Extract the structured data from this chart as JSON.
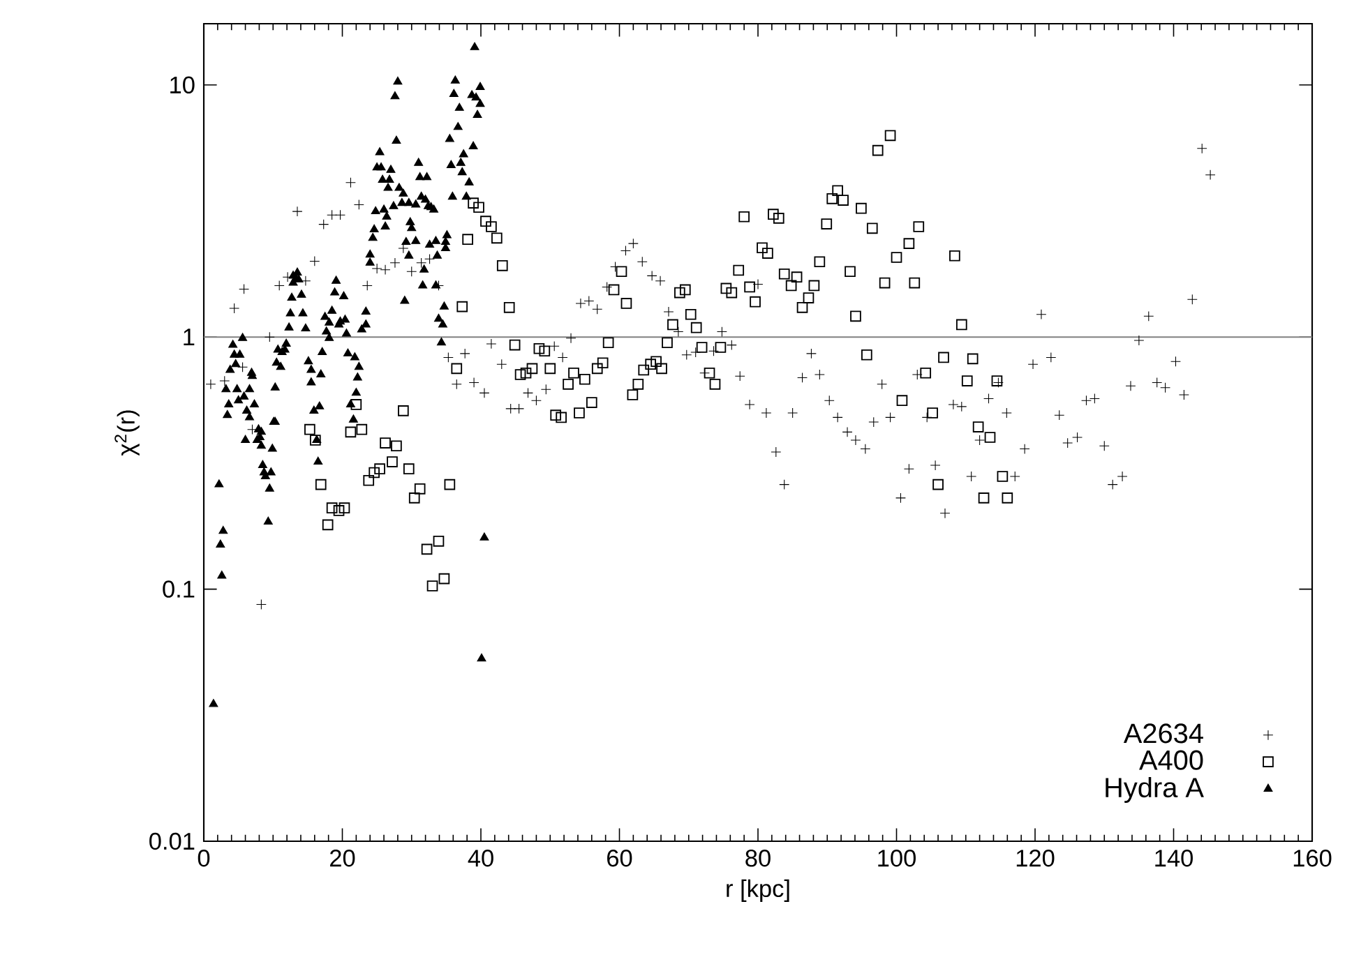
{
  "chart_data": {
    "type": "scatter",
    "xlabel": "r [kpc]",
    "ylabel": "χ$^{2}$(r)",
    "log": "y",
    "legend": "bottom right",
    "xlim": [
      0,
      160
    ],
    "xticks": [
      0,
      20,
      40,
      60,
      80,
      100,
      120,
      140,
      160
    ],
    "ylim": [
      0.01,
      17.5
    ],
    "yticks": [
      0.01,
      0.1,
      1,
      10
    ],
    "ref_lines": [
      {
        "axis": "y",
        "value": 1,
        "color": "#808080"
      }
    ],
    "series": [
      {
        "name": "A2634",
        "color": "#000000",
        "marker": "cross",
        "x": [
          1,
          3,
          5.6,
          4.4,
          5.8,
          13.5,
          17.3,
          18.5,
          19.7,
          21.2,
          22.4,
          16,
          10.9,
          12.1,
          14.7,
          9.5,
          7,
          8.3,
          23.6,
          27.6,
          25,
          26.2,
          28.8,
          30,
          31.4,
          32.6,
          33.9,
          41.5,
          43,
          37.7,
          35.3,
          36.5,
          39,
          40.5,
          44.3,
          62,
          60.9,
          59.4,
          63.3,
          64.7,
          65.9,
          58.2,
          54.4,
          55.6,
          56.8,
          53,
          50.6,
          51.8,
          49.4,
          46.8,
          48,
          45.5,
          67.1,
          68.5,
          74.8,
          76.2,
          73.6,
          71,
          69.7,
          72.3,
          77.4,
          78.8,
          81.2,
          82.6,
          83.8,
          85,
          80,
          86.4,
          87.7,
          88.9,
          90.3,
          91.5,
          92.9,
          94.1,
          95.5,
          96.7,
          97.9,
          99.1,
          100.6,
          101.8,
          103,
          104.4,
          105.6,
          107,
          108.2,
          109.4,
          110.8,
          112,
          113.3,
          114.7,
          115.9,
          117.1,
          118.5,
          119.7,
          120.9,
          122.3,
          123.5,
          124.7,
          126.1,
          127.4,
          128.6,
          130,
          131.2,
          132.6,
          133.8,
          135,
          136.4,
          137.6,
          138.8,
          140.3,
          141.5,
          142.7,
          144.1,
          145.3
        ],
        "values": [
          0.65,
          0.67,
          0.76,
          1.3,
          1.55,
          3.15,
          2.8,
          3.05,
          3.05,
          4.1,
          3.35,
          2.0,
          1.6,
          1.73,
          1.67,
          1.0,
          0.43,
          0.087,
          1.6,
          1.97,
          1.87,
          1.85,
          2.25,
          1.82,
          1.97,
          2.04,
          1.6,
          0.94,
          0.78,
          0.86,
          0.83,
          0.65,
          0.66,
          0.6,
          0.52,
          2.35,
          2.2,
          1.9,
          1.99,
          1.75,
          1.67,
          1.58,
          1.36,
          1.39,
          1.29,
          0.99,
          0.92,
          0.83,
          0.62,
          0.6,
          0.56,
          0.52,
          1.26,
          1.05,
          1.05,
          0.93,
          0.88,
          0.87,
          0.85,
          0.72,
          0.7,
          0.54,
          0.5,
          0.35,
          0.26,
          0.5,
          1.62,
          0.69,
          0.86,
          0.71,
          0.56,
          0.48,
          0.42,
          0.39,
          0.36,
          0.46,
          0.65,
          0.48,
          0.23,
          0.3,
          0.71,
          0.48,
          0.31,
          0.2,
          0.54,
          0.53,
          0.28,
          0.39,
          0.57,
          0.66,
          0.5,
          0.28,
          0.36,
          0.78,
          1.23,
          0.83,
          0.49,
          0.38,
          0.4,
          0.56,
          0.57,
          0.37,
          0.26,
          0.28,
          0.64,
          0.97,
          1.21,
          0.66,
          0.63,
          0.8,
          0.59,
          1.41,
          5.6,
          4.4
        ]
      },
      {
        "name": "A400",
        "color": "#000000",
        "marker": "square",
        "x": [
          38.9,
          39.7,
          40.7,
          41.5,
          42.3,
          38.1,
          43.1,
          37.3,
          44.1,
          44.9,
          36.5,
          28.8,
          22,
          15.3,
          16.1,
          21.2,
          22.8,
          26.2,
          27.8,
          27.2,
          25.4,
          24.6,
          23.8,
          29.6,
          16.9,
          31.2,
          30.4,
          35.5,
          18.5,
          19.5,
          20.3,
          17.9,
          32.2,
          33.9,
          33,
          34.7,
          48.4,
          49.2,
          47.4,
          46.5,
          45.7,
          50,
          52.6,
          53.4,
          55,
          56.8,
          57.6,
          58.4,
          56,
          54.2,
          50.8,
          51.6,
          61.9,
          62.7,
          63.5,
          64.5,
          65.3,
          66.1,
          59.2,
          60.3,
          61,
          66.9,
          67.7,
          68.7,
          69.5,
          70.3,
          71.1,
          71.9,
          73,
          73.8,
          74.6,
          75.4,
          76.2,
          77.2,
          78,
          78.8,
          79.6,
          80.6,
          81.4,
          82.2,
          83,
          83.8,
          84.8,
          85.6,
          86.4,
          87.3,
          88.1,
          88.9,
          89.9,
          90.7,
          91.5,
          92.3,
          93.3,
          94.1,
          94.9,
          95.7,
          96.5,
          98.3,
          100,
          100.8,
          101.8,
          102.6,
          103.2,
          97.3,
          99.1,
          108.4,
          109.4,
          106.8,
          111,
          104.2,
          110.2,
          114.5,
          105.2,
          111.8,
          113.5,
          106,
          115.3,
          112.6,
          116
        ],
        "values": [
          3.4,
          3.27,
          2.88,
          2.74,
          2.47,
          2.44,
          1.92,
          1.32,
          1.31,
          0.93,
          0.75,
          0.51,
          0.54,
          0.43,
          0.39,
          0.42,
          0.43,
          0.38,
          0.37,
          0.32,
          0.3,
          0.29,
          0.27,
          0.3,
          0.26,
          0.25,
          0.23,
          0.26,
          0.21,
          0.205,
          0.21,
          0.18,
          0.144,
          0.155,
          0.103,
          0.11,
          0.9,
          0.88,
          0.75,
          0.72,
          0.71,
          0.75,
          0.65,
          0.72,
          0.68,
          0.75,
          0.79,
          0.95,
          0.55,
          0.5,
          0.49,
          0.48,
          0.59,
          0.65,
          0.74,
          0.78,
          0.8,
          0.75,
          1.54,
          1.82,
          1.36,
          0.95,
          1.12,
          1.5,
          1.54,
          1.23,
          1.09,
          0.91,
          0.72,
          0.65,
          0.91,
          1.56,
          1.5,
          1.84,
          3.0,
          1.58,
          1.38,
          2.26,
          2.15,
          3.07,
          2.96,
          1.78,
          1.6,
          1.73,
          1.31,
          1.43,
          1.6,
          1.99,
          2.81,
          3.54,
          3.81,
          3.49,
          1.82,
          1.21,
          3.24,
          0.85,
          2.7,
          1.64,
          2.07,
          0.56,
          2.35,
          1.64,
          2.74,
          5.5,
          6.3,
          2.1,
          1.12,
          0.83,
          0.82,
          0.72,
          0.67,
          0.67,
          0.5,
          0.44,
          0.4,
          0.26,
          0.28,
          0.23,
          0.23
        ]
      },
      {
        "name": "Hydra A",
        "color": "#000000",
        "marker": "triangle",
        "x": [
          39.1,
          36.3,
          28,
          27.6,
          39.9,
          36.1,
          38.7,
          39.3,
          39.9,
          36.9,
          39.5,
          27.8,
          35.5,
          36.7,
          38.9,
          25.4,
          37.5,
          35.7,
          37.1,
          31,
          25,
          25.6,
          27,
          37.3,
          31.2,
          32.2,
          25.8,
          26.8,
          38.3,
          26.6,
          28.2,
          28.8,
          35.9,
          31.4,
          37.9,
          28.6,
          29.6,
          30.6,
          32,
          32.4,
          32.8,
          33.2,
          27.4,
          24.8,
          26,
          26.4,
          29.8,
          30,
          24.6,
          26.2,
          24.4,
          35.1,
          30.6,
          33.5,
          29.2,
          34.9,
          32.6,
          34.9,
          29.6,
          33.7,
          24,
          31.8,
          24,
          33.5,
          31.6,
          29,
          34.7,
          33.9,
          34.5,
          34.3,
          13.5,
          12.9,
          13.3,
          13.7,
          12.9,
          14.1,
          12.7,
          19.1,
          18.9,
          20.2,
          12.5,
          14.3,
          14.7,
          12.3,
          18.5,
          17.5,
          18.1,
          19.7,
          20.4,
          17.7,
          19.5,
          23.4,
          23.4,
          22.8,
          20.6,
          18.1,
          5.6,
          4.2,
          4.4,
          5.2,
          4.6,
          6.9,
          7,
          3.8,
          3.2,
          4.8,
          6.6,
          3.6,
          5,
          5.8,
          7.3,
          6.2,
          3.4,
          6.6,
          10.3,
          7.9,
          10.7,
          11.3,
          11.7,
          11.9,
          10.5,
          11.1,
          10.3,
          10.1,
          8.3,
          6,
          8.1,
          7.7,
          8.3,
          9.9,
          8.5,
          8.7,
          9.7,
          8.9,
          9.5,
          9.3,
          2.2,
          2.8,
          2.4,
          2.6,
          1.4,
          15.1,
          15.5,
          16.9,
          15.5,
          17.1,
          15.9,
          16.7,
          16.3,
          16.5,
          20.8,
          21.8,
          22.4,
          22.2,
          22,
          21.2,
          21.6,
          40.5,
          40.1
        ],
        "values": [
          14.1,
          10.4,
          10.3,
          9.0,
          9.8,
          9.2,
          9.1,
          8.9,
          8.4,
          8.1,
          7.6,
          6.0,
          6.1,
          6.8,
          5.7,
          5.4,
          5.3,
          4.8,
          4.9,
          4.9,
          4.7,
          4.7,
          4.6,
          4.5,
          4.3,
          4.3,
          4.2,
          4.2,
          4.1,
          3.9,
          3.9,
          3.7,
          3.6,
          3.6,
          3.6,
          3.4,
          3.4,
          3.35,
          3.5,
          3.3,
          3.27,
          3.2,
          3.3,
          3.15,
          3.2,
          3.0,
          2.85,
          2.7,
          2.67,
          2.74,
          2.47,
          2.53,
          2.4,
          2.4,
          2.38,
          2.38,
          2.32,
          2.25,
          2.1,
          2.1,
          2.12,
          1.85,
          1.97,
          1.6,
          1.6,
          1.39,
          1.32,
          1.18,
          1.12,
          0.95,
          1.8,
          1.75,
          1.71,
          1.69,
          1.64,
          1.47,
          1.43,
          1.67,
          1.5,
          1.45,
          1.24,
          1.24,
          1.08,
          1.09,
          1.27,
          1.2,
          1.14,
          1.15,
          1.17,
          1.05,
          1.12,
          1.26,
          1.12,
          1.07,
          1.03,
          0.99,
          0.99,
          0.93,
          0.85,
          0.85,
          0.78,
          0.72,
          0.7,
          0.74,
          0.62,
          0.62,
          0.62,
          0.54,
          0.56,
          0.58,
          0.54,
          0.51,
          0.49,
          0.48,
          0.46,
          0.43,
          0.89,
          0.87,
          0.89,
          0.94,
          0.79,
          0.76,
          0.63,
          0.46,
          0.42,
          0.39,
          0.4,
          0.39,
          0.37,
          0.36,
          0.31,
          0.29,
          0.29,
          0.28,
          0.25,
          0.185,
          0.26,
          0.17,
          0.15,
          0.113,
          0.035,
          0.8,
          0.74,
          0.71,
          0.66,
          0.87,
          0.51,
          0.53,
          0.39,
          0.32,
          0.86,
          0.83,
          0.76,
          0.69,
          0.6,
          0.54,
          0.47,
          0.16,
          0.053
        ]
      }
    ]
  }
}
